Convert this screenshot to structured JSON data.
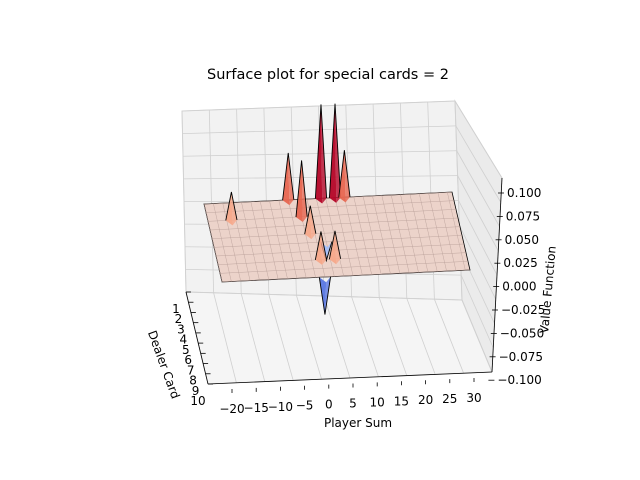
{
  "chart_data": {
    "type": "surface3d",
    "title": "Surface plot for special cards = 2",
    "xlabel": "Player Sum",
    "ylabel": "Dealer Card",
    "zlabel": "Value Function",
    "x_ticks": [
      "−20",
      "−15",
      "−10",
      "−5",
      "0",
      "5",
      "10",
      "15",
      "20",
      "25",
      "30"
    ],
    "y_ticks": [
      "1",
      "2",
      "3",
      "4",
      "5",
      "6",
      "7",
      "8",
      "9",
      "10"
    ],
    "z_ticks": [
      "0.100",
      "0.075",
      "0.050",
      "0.025",
      "0.000",
      "−0.025",
      "−0.050",
      "−0.075",
      "−0.100"
    ],
    "xlim": [
      -22,
      31
    ],
    "ylim": [
      1,
      10
    ],
    "zlim": [
      -0.1,
      0.1
    ],
    "colormap": "coolwarm",
    "peaks": [
      {
        "player_sum": -4,
        "dealer_card": 1,
        "value": 0.05
      },
      {
        "player_sum": 3,
        "dealer_card": 1,
        "value": 0.1
      },
      {
        "player_sum": 6,
        "dealer_card": 1,
        "value": 0.1
      },
      {
        "player_sum": 8,
        "dealer_card": 1,
        "value": 0.05
      },
      {
        "player_sum": -2,
        "dealer_card": 3,
        "value": 0.06
      },
      {
        "player_sum": -17,
        "dealer_card": 3,
        "value": 0.03
      },
      {
        "player_sum": -1,
        "dealer_card": 5,
        "value": 0.03
      },
      {
        "player_sum": 0,
        "dealer_card": 8,
        "value": 0.03
      },
      {
        "player_sum": 3,
        "dealer_card": 8,
        "value": 0.03
      },
      {
        "player_sum": 0,
        "dealer_card": 10,
        "value": -0.04
      },
      {
        "player_sum": 2,
        "dealer_card": 6,
        "value": -0.02
      }
    ]
  }
}
